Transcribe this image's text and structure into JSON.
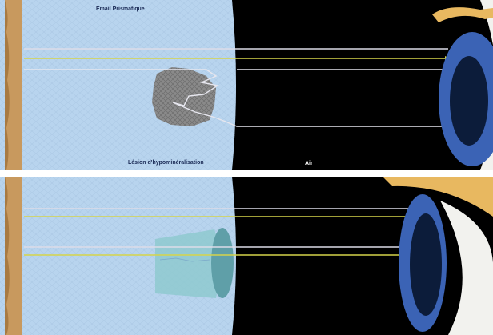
{
  "labels": {
    "enamel": "Email Prismatique",
    "lesion": "Lésion d'hypominéralisation",
    "air": "Air"
  },
  "colors": {
    "enamel": "#b8d4ee",
    "dentin": "#c8995e",
    "air": "#000000",
    "lesion_top": "#8a8a8a",
    "lesion_bottom": "#8ec9cf",
    "ray_white": "#dcdce8",
    "ray_yellow": "#d6d44a",
    "eye_sclera": "#f2f2ee",
    "eye_iris": "#3b63b5",
    "eye_pupil": "#0c1c3a",
    "eyelid": "#e8b860"
  },
  "icons": {
    "eye": "eye-icon"
  }
}
